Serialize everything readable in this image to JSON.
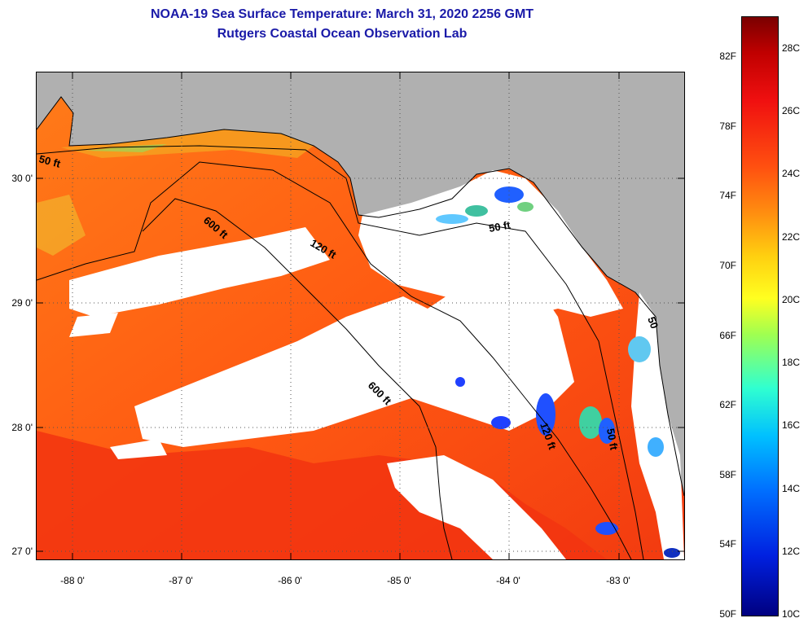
{
  "header": {
    "title": "NOAA-19 Sea Surface Temperature:  March 31, 2020 2256 GMT",
    "subtitle": "Rutgers Coastal Ocean Observation Lab"
  },
  "map": {
    "latitude_labels": [
      "30 0'",
      "29 0'",
      "28 0'",
      "27 0'"
    ],
    "longitude_labels": [
      "-88 0'",
      "-87 0'",
      "-86 0'",
      "-85 0'",
      "-84 0'",
      "-83 0'"
    ],
    "contour_labels": {
      "c50_west": "50 ft",
      "c600_north": "600 ft",
      "c120_north": "120 ft",
      "c50_bend": "50 ft",
      "c600_south": "600 ft",
      "c120_south": "120 ft",
      "c50_south": "50 ft",
      "c50_east": "50"
    },
    "colors": {
      "land": "#b0b0b0",
      "cloud": "#ffffff",
      "warm_water": "#ff6a10",
      "hot_water": "#f03a10",
      "cool_water": "#1f6bff"
    }
  },
  "colorbar": {
    "fahrenheit_labels": [
      "82F",
      "78F",
      "74F",
      "70F",
      "66F",
      "62F",
      "58F",
      "54F",
      "50F"
    ],
    "celsius_labels": [
      "28C",
      "26C",
      "24C",
      "22C",
      "20C",
      "18C",
      "16C",
      "14C",
      "12C",
      "10C"
    ],
    "min_c": 10,
    "max_c": 29.4
  }
}
